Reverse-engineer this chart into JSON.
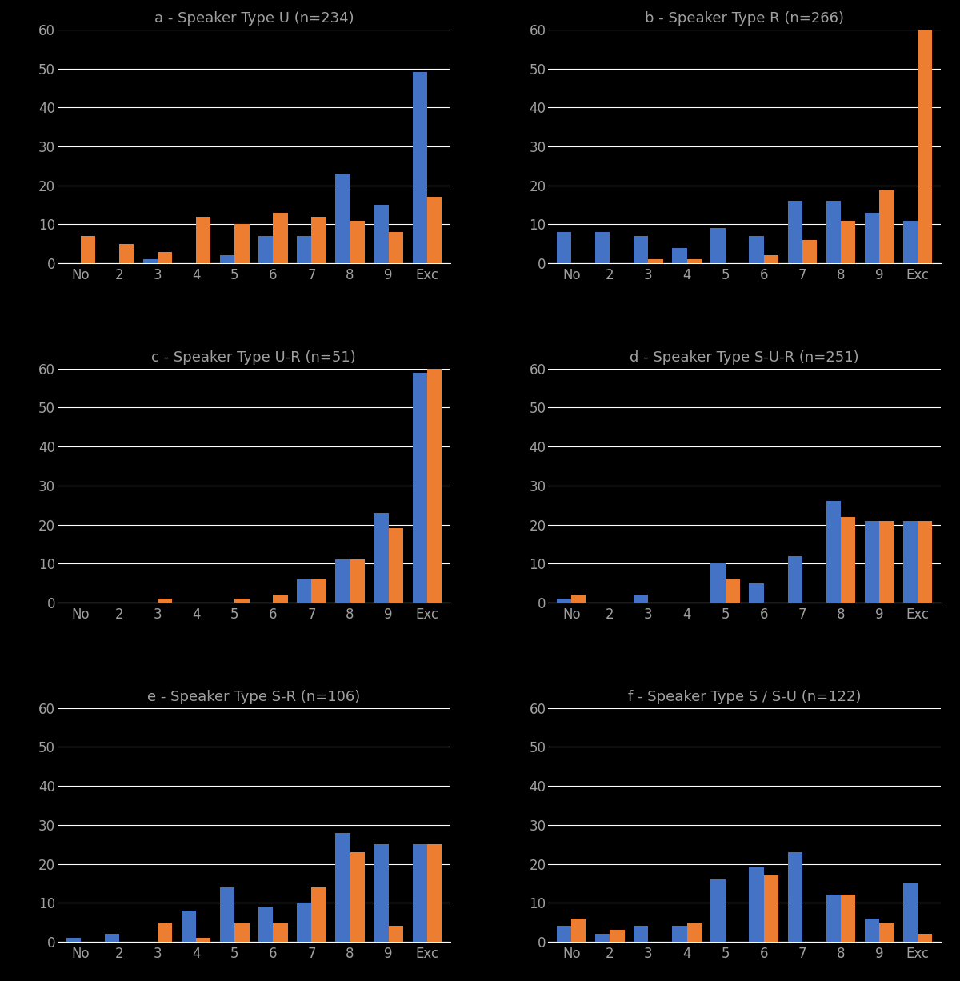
{
  "subplots": [
    {
      "title": "a - Speaker Type U (n=234)",
      "categories": [
        "No",
        "2",
        "3",
        "4",
        "5",
        "6",
        "7",
        "8",
        "9",
        "Exc"
      ],
      "blue": [
        0,
        0,
        1,
        0,
        2,
        7,
        7,
        23,
        15,
        49
      ],
      "orange": [
        7,
        5,
        3,
        12,
        10,
        13,
        12,
        11,
        8,
        17
      ]
    },
    {
      "title": "b - Speaker Type R (n=266)",
      "categories": [
        "No",
        "2",
        "3",
        "4",
        "5",
        "6",
        "7",
        "8",
        "9",
        "Exc"
      ],
      "blue": [
        8,
        8,
        7,
        4,
        9,
        7,
        16,
        16,
        13,
        11
      ],
      "orange": [
        0,
        0,
        1,
        1,
        0,
        2,
        6,
        11,
        19,
        60
      ]
    },
    {
      "title": "c - Speaker Type U-R (n=51)",
      "categories": [
        "No",
        "2",
        "3",
        "4",
        "5",
        "6",
        "7",
        "8",
        "9",
        "Exc"
      ],
      "blue": [
        0,
        0,
        0,
        0,
        0,
        0,
        6,
        11,
        23,
        59
      ],
      "orange": [
        0,
        0,
        1,
        0,
        1,
        2,
        6,
        11,
        19,
        60
      ]
    },
    {
      "title": "d - Speaker Type S-U-R (n=251)",
      "categories": [
        "No",
        "2",
        "3",
        "4",
        "5",
        "6",
        "7",
        "8",
        "9",
        "Exc"
      ],
      "blue": [
        1,
        0,
        2,
        0,
        10,
        5,
        12,
        26,
        21,
        21
      ],
      "orange": [
        2,
        0,
        0,
        0,
        6,
        0,
        0,
        22,
        21,
        21
      ]
    },
    {
      "title": "e - Speaker Type S-R (n=106)",
      "categories": [
        "No",
        "2",
        "3",
        "4",
        "5",
        "6",
        "7",
        "8",
        "9",
        "Exc"
      ],
      "blue": [
        1,
        2,
        0,
        8,
        14,
        9,
        10,
        28,
        25,
        25
      ],
      "orange": [
        0,
        0,
        5,
        1,
        5,
        5,
        14,
        23,
        4,
        25
      ]
    },
    {
      "title": "f - Speaker Type S / S-U (n=122)",
      "categories": [
        "No",
        "2",
        "3",
        "4",
        "5",
        "6",
        "7",
        "8",
        "9",
        "Exc"
      ],
      "blue": [
        4,
        2,
        4,
        4,
        16,
        19,
        23,
        12,
        6,
        15
      ],
      "orange": [
        6,
        3,
        0,
        5,
        0,
        17,
        0,
        12,
        5,
        2
      ]
    }
  ],
  "blue_color": "#4472C4",
  "orange_color": "#ED7D31",
  "ylim": [
    0,
    60
  ],
  "yticks": [
    0,
    10,
    20,
    30,
    40,
    50,
    60
  ],
  "bg_color": "#000000",
  "plot_bg_color": "#000000",
  "text_color": "#A0A0A0",
  "grid_color": "#FFFFFF",
  "bar_width": 0.38,
  "title_fontsize": 13,
  "tick_fontsize": 12
}
